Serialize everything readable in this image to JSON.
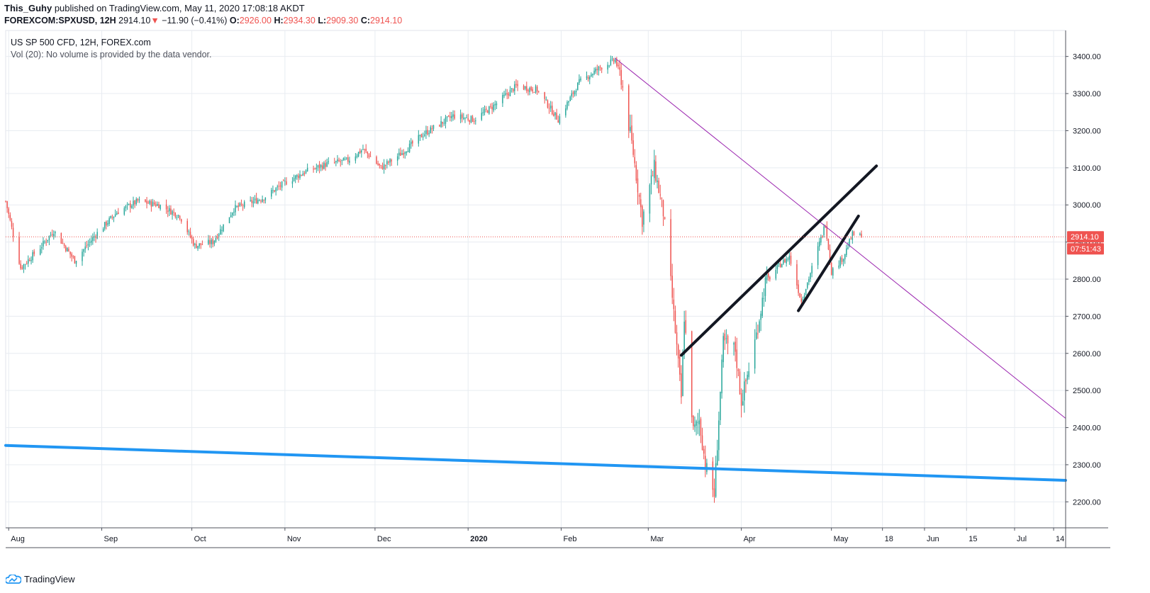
{
  "header": {
    "author": "This_Guhy",
    "published": "published on TradingView.com, May 11, 2020 17:08:18 AKDT",
    "symbol": "FOREXCOM:SPXUSD, 12H",
    "last": "2914.10",
    "change_arrow": "▼",
    "change": "−11.90 (−0.41%)",
    "open_label": "O:",
    "open": "2926.00",
    "high_label": "H:",
    "high": "2934.30",
    "low_label": "L:",
    "low": "2909.30",
    "close_label": "C:",
    "close": "2914.10"
  },
  "legend": {
    "line1": "US SP 500 CFD, 12H, FOREX.com",
    "line2": "Vol (20): No volume is provided by the data vendor."
  },
  "footer": {
    "brand": "TradingView"
  },
  "colors": {
    "up": "#26a69a",
    "down": "#ef5350",
    "grid": "#e8ecf1",
    "purple_line": "#9c27b0",
    "blue_line": "#2196f3",
    "channel": "#131722"
  },
  "chart_data": {
    "type": "candlestick",
    "title": "US SP 500 CFD, 12H, FOREX.com",
    "interval": "12H",
    "ylim": [
      2130,
      3470
    ],
    "y_ticks": [
      2200,
      2300,
      2400,
      2500,
      2600,
      2700,
      2800,
      2900,
      3000,
      3100,
      3200,
      3300,
      3400
    ],
    "x_ticks": [
      "Aug",
      "Sep",
      "Oct",
      "Nov",
      "Dec",
      "2020",
      "Feb",
      "Mar",
      "Apr",
      "May",
      "18",
      "Jun",
      "15",
      "Jul",
      "14"
    ],
    "x_tick_dates": [
      "2019-08-01",
      "2019-09-01",
      "2019-10-01",
      "2019-11-01",
      "2019-12-01",
      "2020-01-01",
      "2020-02-01",
      "2020-03-01",
      "2020-04-01",
      "2020-05-01",
      "2020-05-18",
      "2020-06-01",
      "2020-06-15",
      "2020-07-01",
      "2020-07-14"
    ],
    "x_start": "2019-07-31",
    "x_end": "2020-07-18",
    "last_price": 2914.1,
    "last_price_label": "2914.10",
    "countdown_label": "07:51:43",
    "anchors": [
      [
        "2019-07-31",
        3010
      ],
      [
        "2019-08-05",
        2830
      ],
      [
        "2019-08-12",
        2890
      ],
      [
        "2019-08-16",
        2930
      ],
      [
        "2019-08-23",
        2850
      ],
      [
        "2019-08-30",
        2920
      ],
      [
        "2019-09-06",
        2980
      ],
      [
        "2019-09-13",
        3010
      ],
      [
        "2019-09-20",
        3000
      ],
      [
        "2019-09-27",
        2970
      ],
      [
        "2019-10-02",
        2890
      ],
      [
        "2019-10-08",
        2900
      ],
      [
        "2019-10-15",
        2990
      ],
      [
        "2019-10-25",
        3020
      ],
      [
        "2019-11-01",
        3060
      ],
      [
        "2019-11-08",
        3090
      ],
      [
        "2019-11-15",
        3110
      ],
      [
        "2019-11-22",
        3120
      ],
      [
        "2019-11-27",
        3150
      ],
      [
        "2019-12-03",
        3100
      ],
      [
        "2019-12-10",
        3140
      ],
      [
        "2019-12-17",
        3190
      ],
      [
        "2019-12-27",
        3240
      ],
      [
        "2020-01-03",
        3230
      ],
      [
        "2020-01-10",
        3270
      ],
      [
        "2020-01-17",
        3320
      ],
      [
        "2020-01-24",
        3310
      ],
      [
        "2020-01-31",
        3230
      ],
      [
        "2020-02-07",
        3330
      ],
      [
        "2020-02-14",
        3370
      ],
      [
        "2020-02-19",
        3390
      ],
      [
        "2020-02-21",
        3340
      ],
      [
        "2020-02-25",
        3140
      ],
      [
        "2020-02-28",
        2960
      ],
      [
        "2020-03-03",
        3100
      ],
      [
        "2020-03-06",
        2980
      ],
      [
        "2020-03-09",
        2750
      ],
      [
        "2020-03-12",
        2480
      ],
      [
        "2020-03-13",
        2700
      ],
      [
        "2020-03-16",
        2390
      ],
      [
        "2020-03-18",
        2420
      ],
      [
        "2020-03-20",
        2300
      ],
      [
        "2020-03-23",
        2220
      ],
      [
        "2020-03-26",
        2630
      ],
      [
        "2020-03-30",
        2610
      ],
      [
        "2020-04-01",
        2470
      ],
      [
        "2020-04-06",
        2650
      ],
      [
        "2020-04-09",
        2790
      ],
      [
        "2020-04-14",
        2840
      ],
      [
        "2020-04-17",
        2860
      ],
      [
        "2020-04-21",
        2740
      ],
      [
        "2020-04-23",
        2790
      ],
      [
        "2020-04-29",
        2950
      ],
      [
        "2020-05-01",
        2820
      ],
      [
        "2020-05-05",
        2860
      ],
      [
        "2020-05-08",
        2920
      ],
      [
        "2020-05-11",
        2914.1
      ]
    ],
    "drawings": [
      {
        "name": "purple-trendline",
        "color": "#9c27b0",
        "from": [
          "2020-02-19",
          3395
        ],
        "to": [
          "2020-07-18",
          2425
        ]
      },
      {
        "name": "blue-support-line",
        "color": "#2196f3",
        "from": [
          "2019-07-31",
          2352
        ],
        "to": [
          "2020-07-18",
          2258
        ]
      },
      {
        "name": "channel-upper-line",
        "color": "#131722",
        "from": [
          "2020-03-12",
          2595
        ],
        "to": [
          "2020-05-16",
          3105
        ]
      },
      {
        "name": "channel-lower-line",
        "color": "#131722",
        "from": [
          "2020-04-20",
          2715
        ],
        "to": [
          "2020-05-10",
          2970
        ]
      }
    ]
  }
}
